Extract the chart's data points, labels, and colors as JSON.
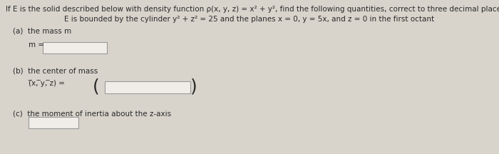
{
  "bg_color": "#d8d4cc",
  "text_color": "#2a2a2a",
  "title_line": "If E is the solid described below with density function ρ(x, y, z) = x² + y², find the following quantities, correct to three decimal places.",
  "subtitle_line": "E is bounded by the cylinder y² + z² = 25 and the planes x = 0, y = 5x, and z = 0 in the first octant",
  "part_a_label": "(a)  the mass m",
  "part_a_eq": "m =",
  "part_b_label": "(b)  the center of mass",
  "part_b_eq": "(̅x, ̅y, ̅z) =",
  "part_c_label": "(c)  the moment of inertia about the z-axis",
  "box_color": "#f0ede8",
  "box_edge_color": "#999999",
  "font_size_title": 7.5,
  "font_size_body": 7.5,
  "font_size_paren": 18
}
